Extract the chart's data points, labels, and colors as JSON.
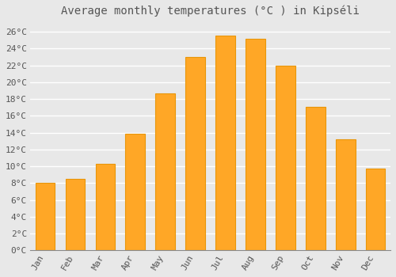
{
  "title": "Average monthly temperatures (°C ) in Kipséli",
  "months": [
    "Jan",
    "Feb",
    "Mar",
    "Apr",
    "May",
    "Jun",
    "Jul",
    "Aug",
    "Sep",
    "Oct",
    "Nov",
    "Dec"
  ],
  "values": [
    8.0,
    8.5,
    10.3,
    13.9,
    18.7,
    23.0,
    25.5,
    25.2,
    22.0,
    17.1,
    13.2,
    9.7
  ],
  "bar_color": "#FFA726",
  "bar_edge_color": "#E8960A",
  "background_color": "#E8E8E8",
  "plot_bg_color": "#E8E8E8",
  "grid_color": "#FFFFFF",
  "text_color": "#555555",
  "ylim": [
    0,
    27
  ],
  "yticks": [
    0,
    2,
    4,
    6,
    8,
    10,
    12,
    14,
    16,
    18,
    20,
    22,
    24,
    26
  ],
  "tick_label_suffix": "°C",
  "title_fontsize": 10,
  "tick_fontsize": 8,
  "font_family": "monospace"
}
